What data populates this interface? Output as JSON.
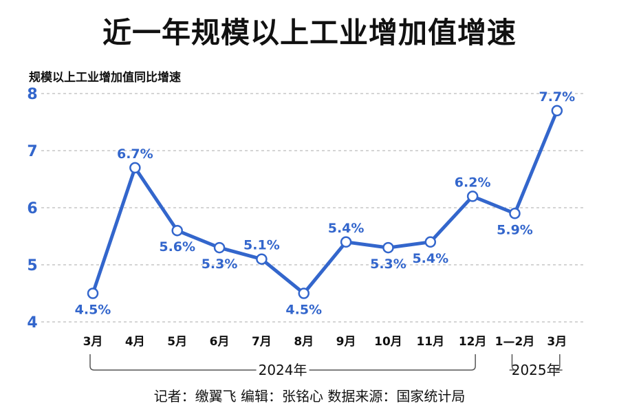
{
  "title": "近一年规模以上工业增加值增速",
  "subtitle": "规模以上工业增加值同比增速",
  "credits": "记者：缴翼飞  编辑：张铭心   数据来源：国家统计局",
  "colors": {
    "line": "#3366cc",
    "axis": "#3366cc",
    "grid": "#aaaaaa",
    "text": "#111111"
  },
  "chart_data": {
    "type": "line",
    "categories": [
      "3月",
      "4月",
      "5月",
      "6月",
      "7月",
      "8月",
      "9月",
      "10月",
      "11月",
      "12月",
      "1—2月",
      "3月"
    ],
    "values": [
      4.5,
      6.7,
      5.6,
      5.3,
      5.1,
      4.5,
      5.4,
      5.3,
      5.4,
      6.2,
      5.9,
      7.7
    ],
    "labels": [
      "4.5%",
      "6.7%",
      "5.6%",
      "5.3%",
      "5.1%",
      "4.5%",
      "5.4%",
      "5.3%",
      "5.4%",
      "6.2%",
      "5.9%",
      "7.7%"
    ],
    "label_positions": [
      "below",
      "above",
      "below",
      "below",
      "above",
      "below",
      "above",
      "below",
      "below",
      "above",
      "below",
      "above"
    ],
    "yticks": [
      4,
      5,
      6,
      7,
      8
    ],
    "ylim": [
      4,
      8
    ],
    "grid": true,
    "year_groups": [
      {
        "label": "2024年",
        "from": 0,
        "to": 9
      },
      {
        "label": "2025年",
        "from": 10,
        "to": 11
      }
    ]
  }
}
